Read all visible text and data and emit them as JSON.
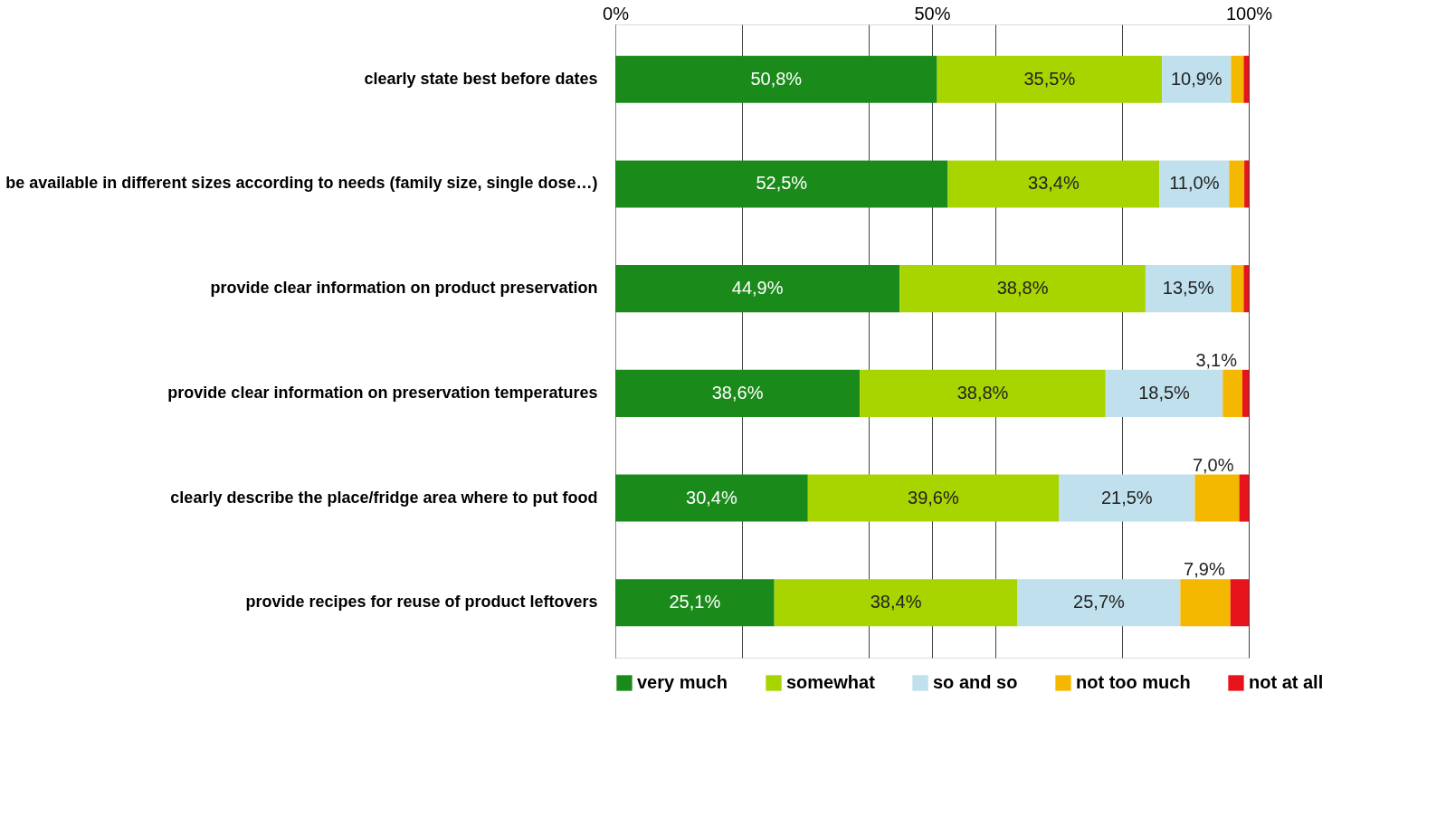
{
  "chart_data": {
    "type": "bar",
    "orientation": "horizontal",
    "stacked": true,
    "categories": [
      "clearly state best before dates",
      "be available in different sizes according to needs (family size, single dose…)",
      "provide clear information on product preservation",
      "provide clear information on preservation temperatures",
      "clearly describe the place/fridge area where to put food",
      "provide recipes for reuse of product leftovers"
    ],
    "series": [
      {
        "name": "very much",
        "color": "#1a8a1a",
        "values": [
          50.8,
          52.5,
          44.9,
          38.6,
          30.4,
          25.1
        ],
        "value_labels": [
          "50,8%",
          "52,5%",
          "44,9%",
          "38,6%",
          "30,4%",
          "25,1%"
        ]
      },
      {
        "name": "somewhat",
        "color": "#a8d400",
        "values": [
          35.5,
          33.4,
          38.8,
          38.8,
          39.6,
          38.4
        ],
        "value_labels": [
          "35,5%",
          "33,4%",
          "38,8%",
          "38,8%",
          "39,6%",
          "38,4%"
        ]
      },
      {
        "name": "so and so",
        "color": "#bfe0ec",
        "values": [
          10.9,
          11.0,
          13.5,
          18.5,
          21.5,
          25.7
        ],
        "value_labels": [
          "10,9%",
          "11,0%",
          "13,5%",
          "18,5%",
          "21,5%",
          "25,7%"
        ]
      },
      {
        "name": "not too much",
        "color": "#f5b800",
        "values": [
          2.0,
          2.4,
          2.0,
          3.1,
          7.0,
          7.9
        ],
        "value_labels": [
          null,
          null,
          null,
          "3,1%",
          "7,0%",
          "7,9%"
        ]
      },
      {
        "name": "not at all",
        "color": "#e8141c",
        "values": [
          0.8,
          0.7,
          0.8,
          1.0,
          1.5,
          2.9
        ],
        "value_labels": [
          null,
          null,
          null,
          null,
          null,
          null
        ]
      }
    ],
    "xlim": [
      0,
      100
    ],
    "xticks": [
      {
        "value": 0,
        "label": "0%"
      },
      {
        "value": 20,
        "label": null
      },
      {
        "value": 40,
        "label": null
      },
      {
        "value": 50,
        "label": "50%"
      },
      {
        "value": 60,
        "label": null
      },
      {
        "value": 80,
        "label": null
      },
      {
        "value": 100,
        "label": "100%"
      }
    ],
    "grid": "x",
    "legend": "bottom"
  }
}
